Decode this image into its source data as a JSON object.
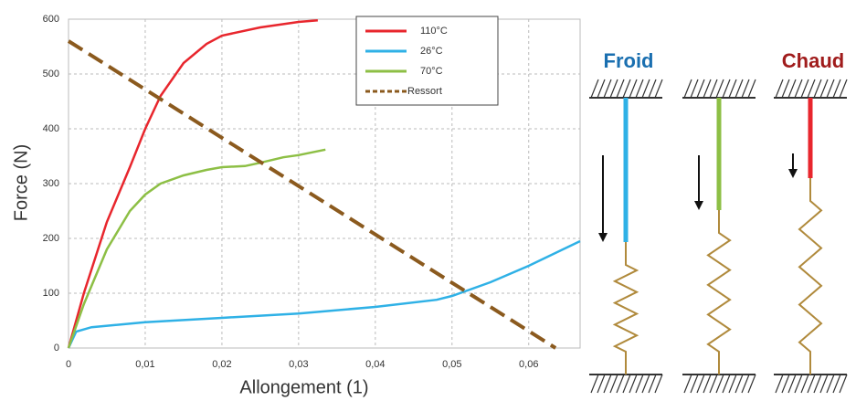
{
  "chart_data": {
    "type": "line",
    "y_label": "Force (N)",
    "x_label": "Allongement (1)",
    "xlim": [
      0,
      0.0667
    ],
    "ylim": [
      0,
      600
    ],
    "xticks": [
      0,
      {
        "value": 0.01,
        "label": "0,01"
      },
      {
        "value": 0.02,
        "label": "0,02"
      },
      {
        "value": 0.03,
        "label": "0,03"
      },
      {
        "value": 0.04,
        "label": "0,04"
      },
      {
        "value": 0.05,
        "label": "0,05"
      },
      {
        "value": 0.06,
        "label": "0,06"
      }
    ],
    "yticks": [
      0,
      100,
      200,
      300,
      400,
      500,
      600
    ],
    "grid": true,
    "legend": "top",
    "series": [
      {
        "name": "110°C",
        "color": "#e8262d",
        "style": "solid",
        "x": [
          0,
          0.002,
          0.005,
          0.008,
          0.01,
          0.012,
          0.015,
          0.018,
          0.02,
          0.025,
          0.03,
          0.0325
        ],
        "values": [
          0,
          100,
          230,
          330,
          400,
          460,
          520,
          555,
          570,
          585,
          595,
          598
        ]
      },
      {
        "name": "26°C",
        "color": "#2fb1e6",
        "style": "solid",
        "x": [
          0,
          0.001,
          0.003,
          0.01,
          0.02,
          0.03,
          0.04,
          0.048,
          0.05,
          0.055,
          0.06,
          0.0667
        ],
        "values": [
          0,
          30,
          38,
          47,
          55,
          63,
          75,
          88,
          95,
          120,
          150,
          195
        ]
      },
      {
        "name": "70°C",
        "color": "#8dbf45",
        "style": "solid",
        "x": [
          0,
          0.002,
          0.005,
          0.008,
          0.01,
          0.012,
          0.015,
          0.018,
          0.02,
          0.023,
          0.025,
          0.028,
          0.03,
          0.0335
        ],
        "values": [
          0,
          80,
          180,
          250,
          280,
          300,
          315,
          325,
          330,
          332,
          338,
          348,
          352,
          362
        ]
      },
      {
        "name": "Ressort",
        "color": "#8b5a1e",
        "style": "dashed",
        "x": [
          0,
          0.0635
        ],
        "values": [
          560,
          0
        ]
      }
    ]
  },
  "diagram": {
    "labels": [
      "Froid",
      "Chaud"
    ]
  }
}
